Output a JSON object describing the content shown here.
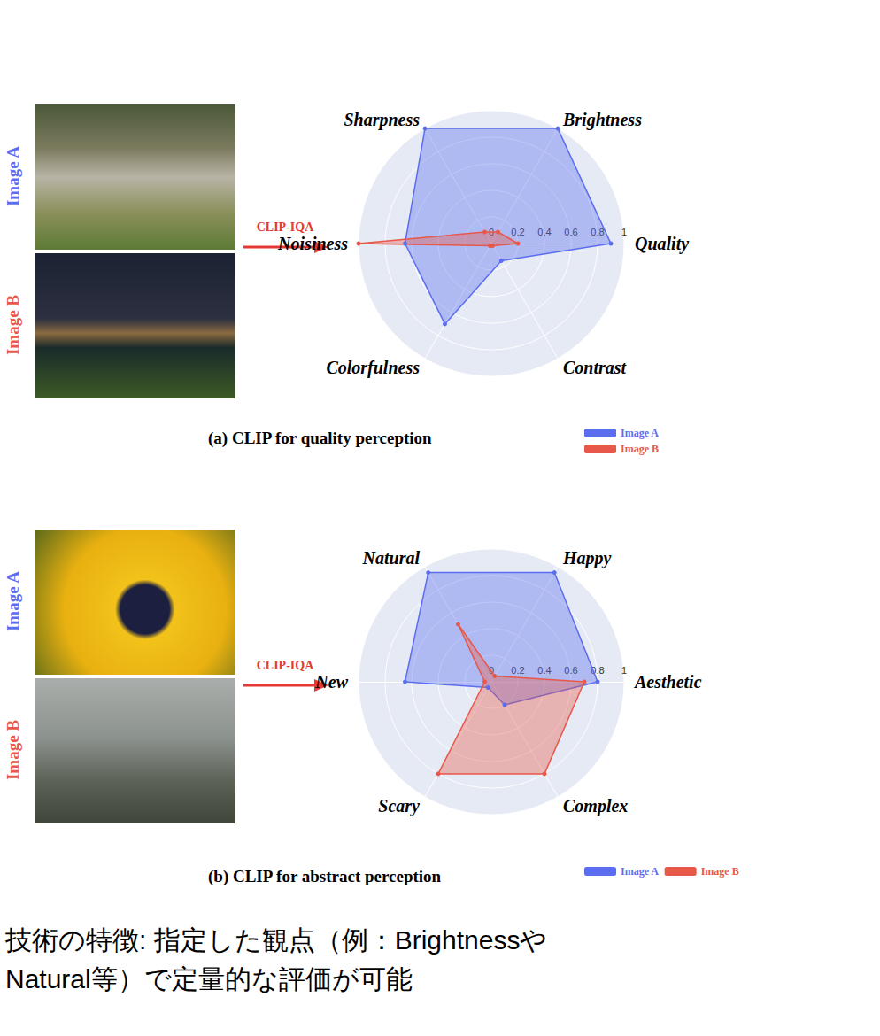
{
  "chart_data": [
    {
      "type": "radar",
      "title": "(a) CLIP for quality perception",
      "arrow_label": "CLIP-IQA",
      "categories": [
        "Quality",
        "Brightness",
        "Sharpness",
        "Noisiness",
        "Colorfulness",
        "Contrast"
      ],
      "ylim": [
        0,
        1
      ],
      "yticks": [
        0,
        0.2,
        0.4,
        0.6,
        0.8,
        1
      ],
      "grid": true,
      "legend": "bottom right",
      "series": [
        {
          "name": "Image A",
          "color": "#5b6ef0",
          "values": [
            0.9,
            1.0,
            1.0,
            0.65,
            0.7,
            0.15
          ]
        },
        {
          "name": "Image B",
          "color": "#e8584a",
          "values": [
            0.2,
            0.1,
            0.1,
            1.0,
            0.02,
            0.02
          ]
        }
      ]
    },
    {
      "type": "radar",
      "title": "(b) CLIP for abstract perception",
      "arrow_label": "CLIP-IQA",
      "categories": [
        "Aesthetic",
        "Happy",
        "Natural",
        "New",
        "Scary",
        "Complex"
      ],
      "ylim": [
        0,
        1
      ],
      "yticks": [
        0,
        0.2,
        0.4,
        0.6,
        0.8,
        1
      ],
      "grid": true,
      "legend": "bottom right",
      "series": [
        {
          "name": "Image A",
          "color": "#5b6ef0",
          "values": [
            0.8,
            0.95,
            0.95,
            0.65,
            0.05,
            0.2
          ]
        },
        {
          "name": "Image B",
          "color": "#e8584a",
          "values": [
            0.7,
            0.05,
            0.5,
            0.05,
            0.8,
            0.8
          ]
        }
      ]
    }
  ],
  "note": [
    "技術の特徴: 指定した観点（例：Brightnessや",
    "Natural等）で定量的な評価が可能"
  ]
}
